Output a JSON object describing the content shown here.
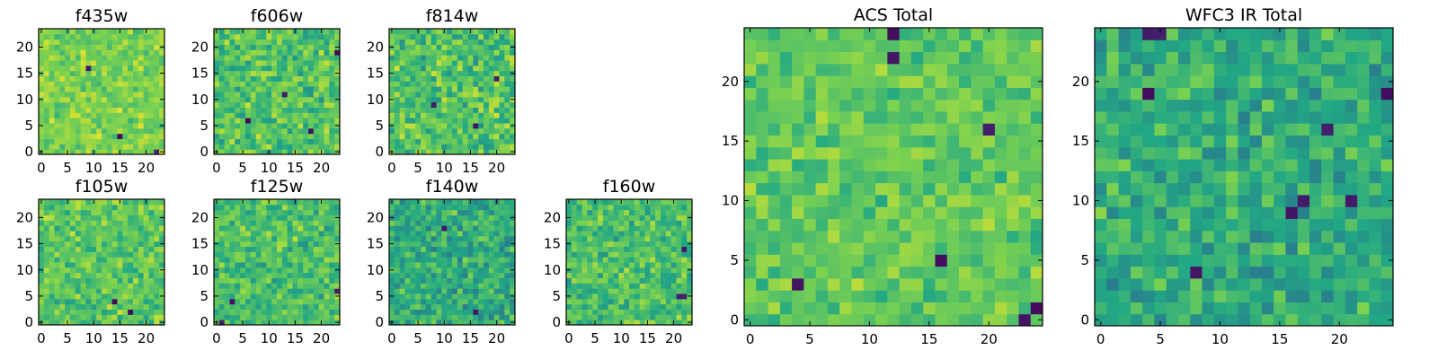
{
  "figure": {
    "colormap": [
      "#440154",
      "#414487",
      "#2a788e",
      "#22a884",
      "#7ad151",
      "#fde725"
    ],
    "frame_color": "#000000",
    "background": "#ffffff"
  },
  "chart_data": [
    {
      "type": "heatmap",
      "title": "f435w",
      "grid_size": [
        24,
        24
      ],
      "xlim": [
        0,
        24
      ],
      "ylim": [
        0,
        24
      ],
      "xticks": [
        0,
        5,
        10,
        15,
        20
      ],
      "yticks": [
        0,
        5,
        10,
        15,
        20
      ],
      "value_range": [
        0,
        1
      ],
      "typical_value": 0.8,
      "spread": 0.1,
      "dark_spots": [
        [
          9,
          16
        ],
        [
          15,
          3
        ],
        [
          22,
          0
        ]
      ]
    },
    {
      "type": "heatmap",
      "title": "f606w",
      "grid_size": [
        24,
        24
      ],
      "xlim": [
        0,
        24
      ],
      "ylim": [
        0,
        24
      ],
      "xticks": [
        0,
        5,
        10,
        15,
        20
      ],
      "yticks": [
        0,
        5,
        10,
        15,
        20
      ],
      "value_range": [
        0,
        1
      ],
      "typical_value": 0.72,
      "spread": 0.14,
      "dark_spots": [
        [
          13,
          11
        ],
        [
          18,
          4
        ],
        [
          23,
          19
        ],
        [
          6,
          6
        ]
      ]
    },
    {
      "type": "heatmap",
      "title": "f814w",
      "grid_size": [
        24,
        24
      ],
      "xlim": [
        0,
        24
      ],
      "ylim": [
        0,
        24
      ],
      "xticks": [
        0,
        5,
        10,
        15,
        20
      ],
      "yticks": [
        0,
        5,
        10,
        15,
        20
      ],
      "value_range": [
        0,
        1
      ],
      "typical_value": 0.72,
      "spread": 0.14,
      "dark_spots": [
        [
          8,
          9
        ],
        [
          16,
          5
        ],
        [
          20,
          14
        ]
      ]
    },
    {
      "type": "heatmap",
      "title": "f105w",
      "grid_size": [
        24,
        24
      ],
      "xlim": [
        0,
        24
      ],
      "ylim": [
        0,
        24
      ],
      "xticks": [
        0,
        5,
        10,
        15,
        20
      ],
      "yticks": [
        0,
        5,
        10,
        15,
        20
      ],
      "value_range": [
        0,
        1
      ],
      "typical_value": 0.74,
      "spread": 0.12,
      "dark_spots": [
        [
          14,
          4
        ],
        [
          17,
          2
        ]
      ]
    },
    {
      "type": "heatmap",
      "title": "f125w",
      "grid_size": [
        24,
        24
      ],
      "xlim": [
        0,
        24
      ],
      "ylim": [
        0,
        24
      ],
      "xticks": [
        0,
        5,
        10,
        15,
        20
      ],
      "yticks": [
        0,
        5,
        10,
        15,
        20
      ],
      "value_range": [
        0,
        1
      ],
      "typical_value": 0.7,
      "spread": 0.13,
      "dark_spots": [
        [
          3,
          4
        ],
        [
          23,
          6
        ],
        [
          1,
          0
        ]
      ]
    },
    {
      "type": "heatmap",
      "title": "f140w",
      "grid_size": [
        24,
        24
      ],
      "xlim": [
        0,
        24
      ],
      "ylim": [
        0,
        24
      ],
      "xticks": [
        0,
        5,
        10,
        15,
        20
      ],
      "yticks": [
        0,
        5,
        10,
        15,
        20
      ],
      "value_range": [
        0,
        1
      ],
      "typical_value": 0.62,
      "spread": 0.14,
      "dark_spots": [
        [
          10,
          18
        ],
        [
          16,
          2
        ]
      ]
    },
    {
      "type": "heatmap",
      "title": "f160w",
      "grid_size": [
        24,
        24
      ],
      "xlim": [
        0,
        24
      ],
      "ylim": [
        0,
        24
      ],
      "xticks": [
        0,
        5,
        10,
        15,
        20
      ],
      "yticks": [
        0,
        5,
        10,
        15,
        20
      ],
      "value_range": [
        0,
        1
      ],
      "typical_value": 0.7,
      "spread": 0.13,
      "dark_spots": [
        [
          21,
          5
        ],
        [
          22,
          5
        ],
        [
          22,
          14
        ]
      ]
    },
    {
      "type": "heatmap",
      "title": "ACS Total",
      "grid_size": [
        25,
        25
      ],
      "xlim": [
        0,
        25
      ],
      "ylim": [
        0,
        25
      ],
      "xticks": [
        0,
        5,
        10,
        15,
        20
      ],
      "yticks": [
        0,
        5,
        10,
        15,
        20
      ],
      "value_range": [
        0,
        1
      ],
      "typical_value": 0.75,
      "spread": 0.1,
      "dark_spots": [
        [
          12,
          24
        ],
        [
          12,
          22
        ],
        [
          16,
          5
        ],
        [
          4,
          3
        ],
        [
          23,
          0
        ],
        [
          24,
          1
        ],
        [
          20,
          16
        ]
      ]
    },
    {
      "type": "heatmap",
      "title": "WFC3 IR Total",
      "grid_size": [
        25,
        25
      ],
      "xlim": [
        0,
        25
      ],
      "ylim": [
        0,
        25
      ],
      "xticks": [
        0,
        5,
        10,
        15,
        20
      ],
      "yticks": [
        0,
        5,
        10,
        15,
        20
      ],
      "value_range": [
        0,
        1
      ],
      "typical_value": 0.62,
      "spread": 0.13,
      "dark_spots": [
        [
          4,
          24
        ],
        [
          5,
          24
        ],
        [
          4,
          19
        ],
        [
          17,
          10
        ],
        [
          16,
          9
        ],
        [
          21,
          10
        ],
        [
          8,
          4
        ],
        [
          24,
          19
        ],
        [
          19,
          16
        ]
      ]
    }
  ]
}
